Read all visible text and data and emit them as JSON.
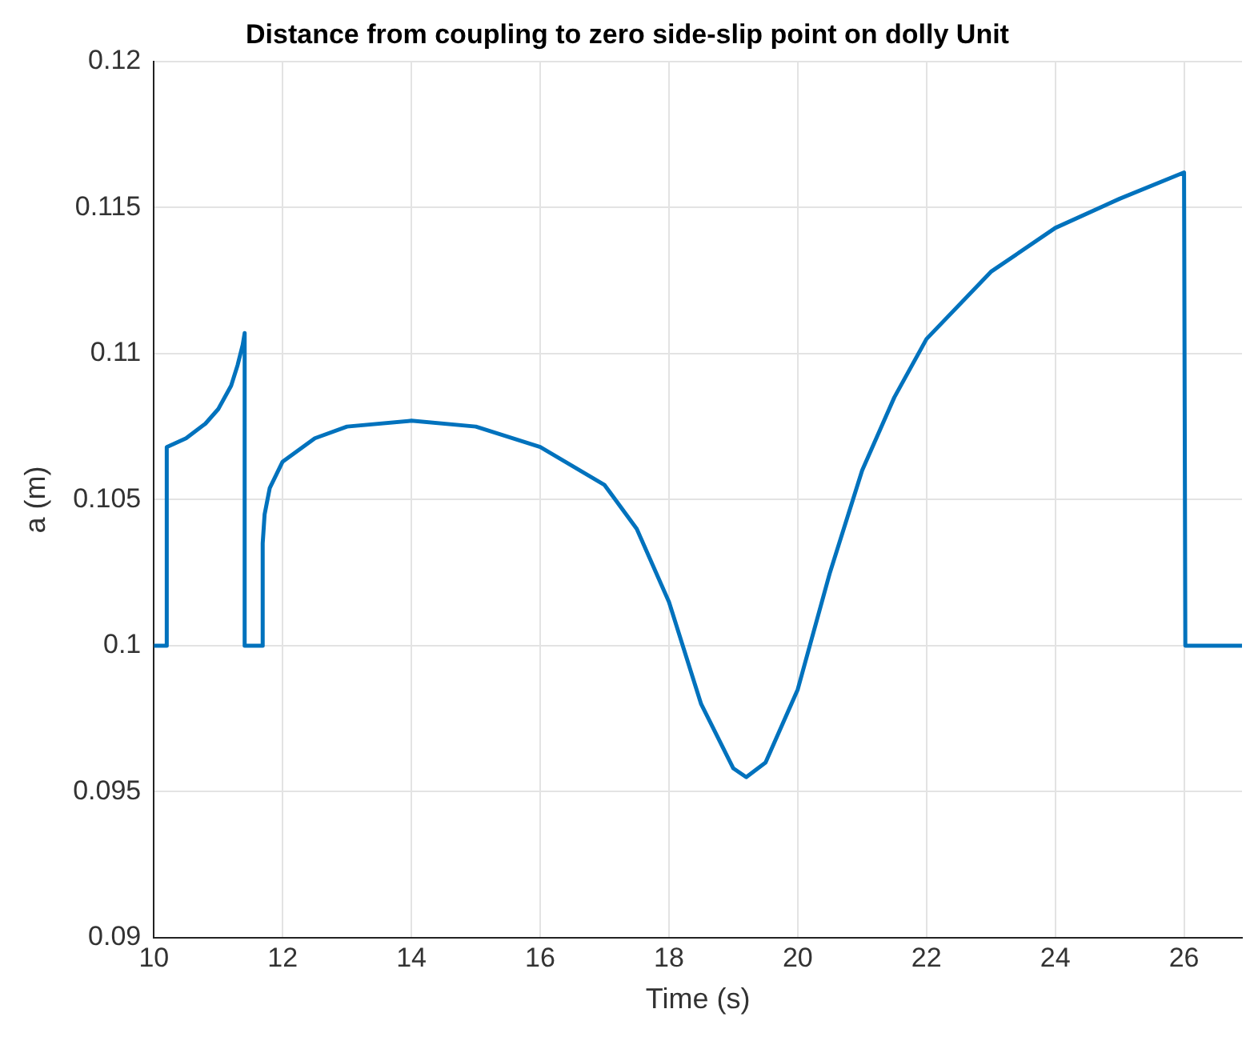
{
  "chart_data": {
    "type": "line",
    "title": "Distance from coupling to zero side-slip point on dolly Unit",
    "xlabel": "Time (s)",
    "ylabel": "a (m)",
    "xlim": [
      10,
      26.9
    ],
    "xticks": [
      10,
      12,
      14,
      16,
      18,
      20,
      22,
      24,
      26
    ],
    "ylim": [
      0.09,
      0.12
    ],
    "yticks": [
      0.09,
      0.095,
      0.1,
      0.105,
      0.11,
      0.115,
      0.12
    ],
    "grid": true,
    "legend": false,
    "marker": "none",
    "line_style": "solid",
    "series": [
      {
        "color": "#0072bd",
        "x": [
          10,
          10.2,
          10.2,
          10.5,
          10.8,
          11,
          11.2,
          11.3,
          11.38,
          11.41,
          11.41,
          11.69,
          11.69,
          11.72,
          11.8,
          12,
          12.5,
          13,
          14,
          15,
          16,
          17,
          17.5,
          18,
          18.5,
          19,
          19.2,
          19.5,
          20,
          20.5,
          21,
          21.5,
          22,
          23,
          24,
          25,
          26,
          26.02,
          26.9
        ],
        "values": [
          0.1,
          0.1,
          0.1068,
          0.1071,
          0.1076,
          0.1081,
          0.1089,
          0.1096,
          0.1103,
          0.1107,
          0.1,
          0.1,
          0.1035,
          0.1045,
          0.1054,
          0.1063,
          0.1071,
          0.1075,
          0.1077,
          0.1075,
          0.1068,
          0.1055,
          0.104,
          0.1015,
          0.098,
          0.0958,
          0.0955,
          0.096,
          0.0985,
          0.1025,
          0.106,
          0.1085,
          0.1105,
          0.1128,
          0.1143,
          0.1153,
          0.1162,
          0.1,
          0.1
        ]
      }
    ]
  }
}
